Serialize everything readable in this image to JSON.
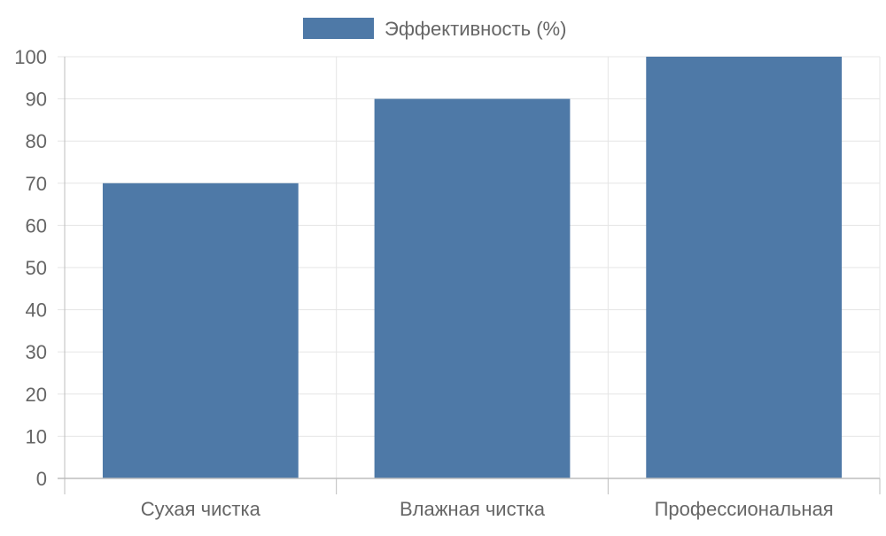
{
  "chart_data": {
    "type": "bar",
    "categories": [
      "Сухая чистка",
      "Влажная чистка",
      "Профессиональная"
    ],
    "series": [
      {
        "name": "Эффективность (%)",
        "values": [
          70,
          90,
          100
        ],
        "color": "#4e79a7"
      }
    ],
    "ylim": [
      0,
      100
    ],
    "yticks": [
      0,
      10,
      20,
      30,
      40,
      50,
      60,
      70,
      80,
      90,
      100
    ],
    "grid": true,
    "legend_position": "top-center"
  },
  "colors": {
    "grid": "#e5e5e5",
    "axis": "#bdbdbd",
    "text": "#666666"
  }
}
